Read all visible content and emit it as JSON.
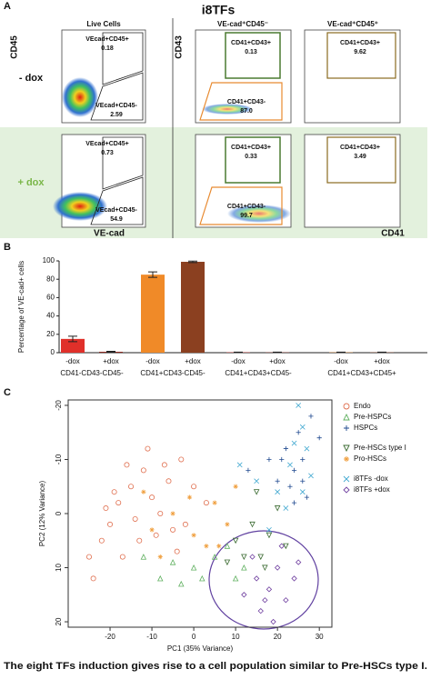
{
  "labels": {
    "panel_a": "A",
    "panel_b": "B",
    "panel_c": "C",
    "caption": "The eight TFs induction gives rise to a cell population similar to Pre-HSCs type I."
  },
  "flow": {
    "title": "i8TFs",
    "columns": [
      "Live Cells",
      "VE-cad⁺CD45⁻",
      "VE-cad⁺CD45⁺"
    ],
    "rows": [
      "- dox",
      "+ dox"
    ],
    "x_labels": [
      "VE-cad",
      "CD41"
    ],
    "y_labels": [
      "CD45",
      "CD43"
    ],
    "gates": [
      [
        [
          {
            "name": "VEcad+CD45+",
            "percent": 0.18
          },
          {
            "name": "VEcad+CD45-",
            "percent": 2.59
          }
        ],
        [
          {
            "name": "CD41+CD43+",
            "percent": 0.13
          },
          {
            "name": "CD41+CD43-",
            "percent": {
              "value": 87,
              "label": "87.0"
            }
          }
        ],
        [
          {
            "name": "CD41+CD43+",
            "percent": 9.62
          }
        ]
      ],
      [
        [
          {
            "name": "VEcad+CD45+",
            "percent": 0.73
          },
          {
            "name": "VEcad+CD45-",
            "percent": 54.9
          }
        ],
        [
          {
            "name": "CD41+CD43+",
            "percent": 0.33
          },
          {
            "name": "CD41+CD43-",
            "percent": 99.7
          }
        ],
        [
          {
            "name": "CD41+CD43+",
            "percent": 3.49
          }
        ]
      ]
    ]
  },
  "chart_data": [
    {
      "type": "bar",
      "y_label": "Percentage of VE-cad+ cells",
      "categories": [
        "-dox",
        "+dox",
        "-dox",
        "+dox",
        "-dox",
        "+dox",
        "-dox",
        "+dox"
      ],
      "groups": [
        "CD41-CD43-CD45-",
        "CD41+CD43-CD45-",
        "CD41+CD43+CD45-",
        "CD41+CD43+CD45+"
      ],
      "values": [
        15,
        1,
        85,
        99,
        0.3,
        0.3,
        0.3,
        0.3
      ],
      "errors": [
        3,
        0.5,
        3,
        0.8,
        0.3,
        0.3,
        0.3,
        0.3
      ],
      "colors": [
        "#e0302a",
        "#8b2a20",
        "#f08a28",
        "#8b4020",
        "#e0302a",
        "#8b2a20",
        "#f08a28",
        "#8b4020"
      ],
      "ylim": [
        0,
        100
      ],
      "yticks": [
        0,
        20,
        40,
        60,
        80,
        100
      ]
    },
    {
      "type": "scatter",
      "x_label": "PC1 (35% Variance)",
      "y_label": "PC2 (12% Variance)",
      "xlim": [
        -30,
        33
      ],
      "ylim": [
        -21,
        21
      ],
      "y_inverted": true,
      "xticks": [
        -20,
        -10,
        0,
        10,
        20,
        30
      ],
      "yticks": [
        -20,
        -10,
        0,
        10,
        20
      ],
      "series": [
        {
          "name": "Endo",
          "color": "#e07050",
          "marker": "circle",
          "x": [
            -22,
            -20,
            -18,
            -15,
            -12,
            -10,
            -8,
            -6,
            -5,
            -14,
            -17,
            -24,
            -3,
            0,
            -11,
            -7,
            -2,
            -19,
            -13,
            -9,
            3,
            -16,
            -21,
            -4,
            -25
          ],
          "y": [
            5,
            2,
            -2,
            -5,
            -8,
            -3,
            0,
            -6,
            3,
            1,
            8,
            12,
            -10,
            -5,
            -12,
            -9,
            2,
            -4,
            5,
            4,
            -2,
            -9,
            -1,
            7,
            8
          ]
        },
        {
          "name": "Pre-HSPCs",
          "color": "#60b060",
          "marker": "triangle",
          "x": [
            -12,
            -5,
            0,
            5,
            10,
            -8,
            8,
            2,
            12,
            -3
          ],
          "y": [
            8,
            9,
            10,
            8,
            12,
            12,
            6,
            12,
            10,
            13
          ]
        },
        {
          "name": "HSPCs",
          "color": "#204a90",
          "marker": "plus",
          "x": [
            22,
            24,
            26,
            25,
            23,
            27,
            21,
            28,
            24,
            20,
            26,
            13,
            18,
            30
          ],
          "y": [
            -12,
            -8,
            -10,
            -15,
            -5,
            -3,
            -10,
            -18,
            -2,
            -6,
            -6,
            -8,
            -10,
            -14
          ]
        },
        {
          "name": "Pre-HSCs type I",
          "color": "#3a6a30",
          "marker": "tridown",
          "x": [
            10,
            14,
            16,
            18,
            12,
            20,
            15,
            8,
            22,
            17
          ],
          "y": [
            5,
            2,
            8,
            4,
            8,
            -1,
            -4,
            9,
            6,
            10
          ]
        },
        {
          "name": "Pro-HSCs",
          "color": "#f0a040",
          "marker": "asterisk",
          "x": [
            -10,
            -5,
            0,
            5,
            8,
            3,
            -8,
            -1,
            10,
            6,
            -12
          ],
          "y": [
            3,
            0,
            4,
            -2,
            2,
            6,
            8,
            -3,
            -5,
            6,
            -4
          ]
        },
        {
          "name": "i8TFs -dox",
          "color": "#40a8d0",
          "marker": "cross",
          "x": [
            24,
            26,
            25,
            27,
            23,
            28,
            20,
            22,
            15,
            18,
            11,
            26
          ],
          "y": [
            -13,
            -16,
            -20,
            -12,
            -9,
            -7,
            -4,
            -1,
            -6,
            3,
            -9,
            -4
          ]
        },
        {
          "name": "i8TFs +dox",
          "color": "#7040a0",
          "marker": "diamond",
          "x": [
            15,
            18,
            20,
            22,
            16,
            12,
            24,
            19,
            14,
            21,
            25,
            17
          ],
          "y": [
            12,
            14,
            10,
            16,
            18,
            15,
            12,
            20,
            8,
            6,
            9,
            16
          ]
        }
      ]
    }
  ]
}
